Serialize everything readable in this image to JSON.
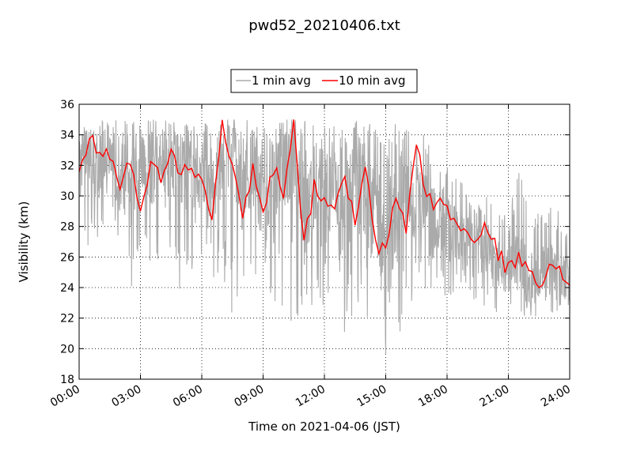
{
  "chart_data": {
    "type": "line",
    "title": "pwd52_20210406.txt",
    "xlabel": "Time on 2021-04-06 (JST)",
    "ylabel": "Visibility (km)",
    "xlim": [
      "00:00",
      "24:00"
    ],
    "ylim": [
      18,
      36
    ],
    "x_ticks": [
      "00:00",
      "03:00",
      "06:00",
      "09:00",
      "12:00",
      "15:00",
      "18:00",
      "21:00",
      "24:00"
    ],
    "y_ticks": [
      "18",
      "20",
      "22",
      "24",
      "26",
      "28",
      "30",
      "32",
      "34",
      "36"
    ],
    "grid": true,
    "legend_position": "top-center",
    "series": [
      {
        "name": "1 min avg",
        "color": "#aaaaaa",
        "x": [
          "00:00",
          "00:30",
          "01:00",
          "01:30",
          "02:00",
          "02:30",
          "03:00",
          "03:30",
          "04:00",
          "04:30",
          "05:00",
          "05:30",
          "06:00",
          "06:30",
          "07:00",
          "07:30",
          "08:00",
          "08:30",
          "09:00",
          "09:30",
          "10:00",
          "10:30",
          "11:00",
          "11:30",
          "12:00",
          "12:30",
          "13:00",
          "13:30",
          "14:00",
          "14:30",
          "15:00",
          "15:30",
          "16:00",
          "16:30",
          "17:00",
          "17:30",
          "18:00",
          "18:30",
          "19:00",
          "19:30",
          "20:00",
          "20:30",
          "21:00",
          "21:30",
          "22:00",
          "22:30",
          "23:00",
          "23:30",
          "24:00"
        ],
        "y": [
          32,
          33,
          31.5,
          32.5,
          31,
          30.5,
          32,
          31,
          32.5,
          31.5,
          32,
          31,
          31.5,
          30.5,
          32,
          33,
          30.5,
          32,
          29.5,
          31,
          32,
          33,
          29,
          30,
          30.5,
          29.5,
          29,
          30.5,
          30,
          28.5,
          28.5,
          28,
          30,
          29.5,
          29,
          28.5,
          28.5,
          27.5,
          27,
          26.5,
          26.5,
          25.5,
          25,
          26,
          24.5,
          25,
          25.5,
          24.5,
          24.5
        ],
        "range_min": [
          28,
          26.5,
          27.5,
          27,
          25.5,
          23.5,
          26,
          25.5,
          26,
          26,
          23.5,
          24,
          25.5,
          23.5,
          22.5,
          21.5,
          25,
          22.5,
          21.5,
          22.5,
          22,
          20,
          21.5,
          23,
          22,
          21.5,
          21,
          22,
          20.5,
          21,
          18.2,
          19.5,
          22.5,
          23.5,
          23.5,
          24,
          23,
          24,
          23.5,
          23,
          22.5,
          22,
          22.5,
          22.5,
          21.5,
          22,
          22.5,
          21.5,
          21.5
        ],
        "range_max": [
          35,
          35,
          35,
          35,
          35,
          35,
          35,
          35,
          35,
          35,
          35,
          35,
          35,
          35,
          35,
          35,
          35,
          35,
          35,
          35,
          35,
          35,
          35,
          35,
          35,
          35,
          35,
          35,
          35,
          35,
          35,
          35,
          34.5,
          34.5,
          34,
          33,
          32.5,
          31.5,
          31,
          30,
          30,
          29,
          29,
          32,
          29,
          29,
          29.5,
          29,
          29
        ]
      },
      {
        "name": "10 min avg",
        "color": "#ff0000",
        "x": [
          "00:00",
          "00:30",
          "01:00",
          "01:30",
          "02:00",
          "02:30",
          "03:00",
          "03:30",
          "04:00",
          "04:30",
          "05:00",
          "05:30",
          "06:00",
          "06:30",
          "07:00",
          "07:30",
          "08:00",
          "08:30",
          "09:00",
          "09:30",
          "10:00",
          "10:30",
          "11:00",
          "11:30",
          "12:00",
          "12:30",
          "13:00",
          "13:30",
          "14:00",
          "14:30",
          "15:00",
          "15:30",
          "16:00",
          "16:30",
          "17:00",
          "17:30",
          "18:00",
          "18:30",
          "19:00",
          "19:30",
          "20:00",
          "20:30",
          "21:00",
          "21:30",
          "22:00",
          "22:30",
          "23:00",
          "23:30",
          "24:00"
        ],
        "y": [
          31.2,
          33.9,
          32.6,
          32.9,
          30.2,
          32.4,
          29.2,
          32.3,
          30.9,
          33.4,
          31.4,
          32.2,
          31.0,
          29.0,
          35.0,
          31.5,
          29.0,
          31.8,
          28.8,
          31.9,
          30.4,
          35.0,
          27.0,
          30.5,
          30.1,
          28.7,
          31.5,
          28.0,
          31.7,
          27.0,
          26.1,
          30.2,
          27.8,
          33.8,
          29.8,
          29.5,
          29.3,
          28.1,
          27.4,
          26.8,
          28.1,
          26.3,
          25.2,
          25.8,
          25.6,
          24.5,
          25.1,
          24.9,
          24.3
        ]
      }
    ]
  }
}
